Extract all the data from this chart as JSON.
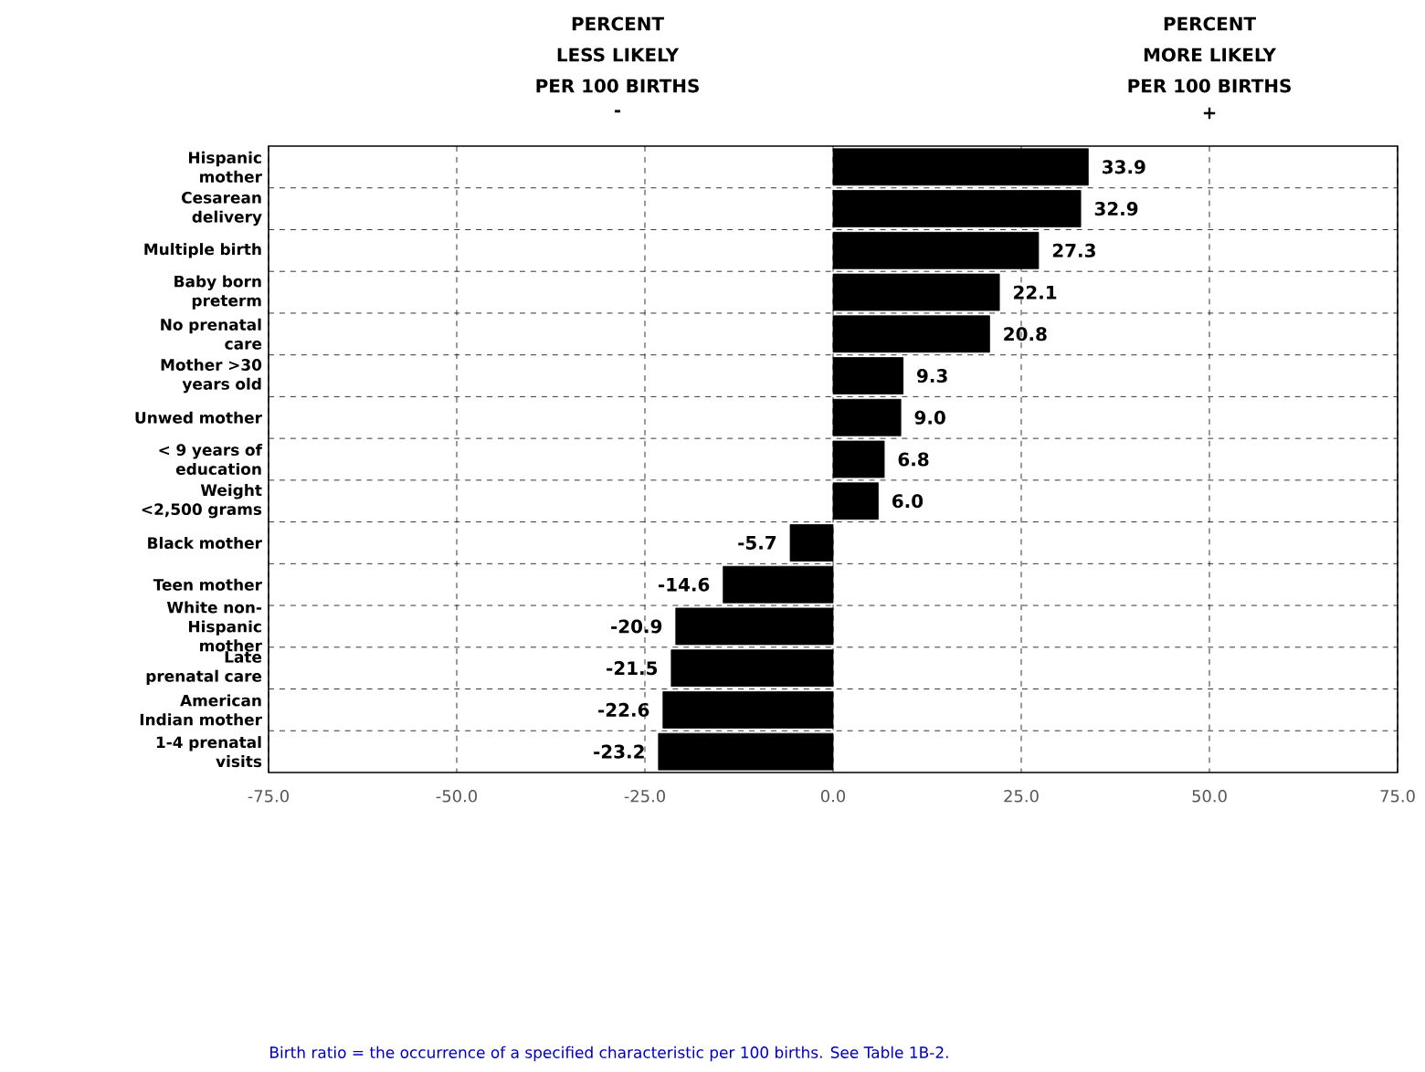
{
  "chart_data": {
    "type": "bar",
    "orientation": "horizontal",
    "categories": [
      "Hispanic mother",
      "Cesarean delivery",
      "Multiple birth",
      "Baby born preterm",
      "No prenatal care",
      "Mother >30 years old",
      "Unwed mother",
      "< 9 years of education",
      "Weight <2,500 grams",
      "Black mother",
      "Teen mother",
      "White non-Hispanic mother",
      "Late prenatal care",
      "American Indian mother",
      "1-4 prenatal visits"
    ],
    "values": [
      33.9,
      32.9,
      27.3,
      22.1,
      20.8,
      9.3,
      9.0,
      6.8,
      6.0,
      -5.7,
      -14.6,
      -20.9,
      -21.5,
      -22.6,
      -23.2
    ],
    "value_labels": [
      "33.9",
      "32.9",
      "27.3",
      "22.1",
      "20.8",
      "9.3",
      "9.0",
      "6.8",
      "6.0",
      "-5.7",
      "-14.6",
      "-20.9",
      "-21.5",
      "-22.6",
      "-23.2"
    ],
    "color": "#000000",
    "grid": true,
    "xlim": [
      -75,
      75
    ],
    "xticks": [
      {
        "value": -75,
        "label": "-75.0"
      },
      {
        "value": -50,
        "label": "-50.0"
      },
      {
        "value": -25,
        "label": "-25.0"
      },
      {
        "value": 0,
        "label": "0.0"
      },
      {
        "value": 25,
        "label": "25.0"
      },
      {
        "value": 50,
        "label": "50.0"
      },
      {
        "value": 75,
        "label": "75.0"
      }
    ],
    "annotations": [
      "PERCENT",
      "LESS LIKELY",
      "PER 100 BIRTHS",
      "-",
      "PERCENT",
      "MORE LIKELY",
      "PER 100 BIRTHS",
      "+",
      "Birth ratio = the occurrence of a specified characteristic per 100 births. See Table 1B-2."
    ]
  }
}
